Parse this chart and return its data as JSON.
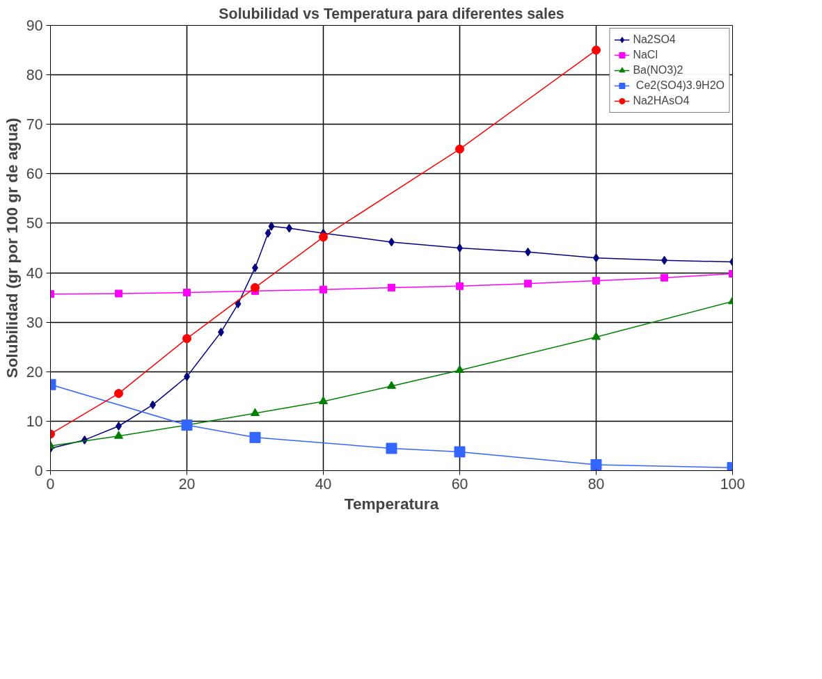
{
  "chart_data": {
    "type": "line",
    "title": "Solubilidad vs Temperatura para diferentes sales",
    "xlabel": "Temperatura",
    "ylabel": "Solubilidad (gr por 100 gr de agua)",
    "xlim": [
      0,
      100
    ],
    "xticks": [
      0,
      20,
      40,
      60,
      80,
      100
    ],
    "ylim": [
      0,
      90
    ],
    "yticks": [
      0,
      10,
      20,
      30,
      40,
      50,
      60,
      70,
      80,
      90
    ],
    "grid": true,
    "legend": "top right",
    "series": [
      {
        "name": "Na2SO4",
        "color": "#000080",
        "marker": "diamond",
        "x": [
          0,
          5,
          10,
          15,
          20,
          25,
          27.5,
          30,
          31.9,
          32.4,
          35,
          40,
          50,
          60,
          70,
          80,
          90,
          100
        ],
        "values": [
          4.5,
          6.2,
          9,
          13.3,
          19,
          28,
          33.7,
          41,
          48,
          49.4,
          49,
          48,
          46.2,
          45,
          44.2,
          43,
          42.5,
          42.2
        ]
      },
      {
        "name": "NaCl",
        "color": "#ff00ff",
        "marker": "square",
        "x": [
          0,
          10,
          20,
          30,
          40,
          50,
          60,
          70,
          80,
          90,
          100
        ],
        "values": [
          35.7,
          35.8,
          36,
          36.3,
          36.6,
          37,
          37.3,
          37.8,
          38.4,
          39,
          39.8
        ]
      },
      {
        "name": "Ba(NO3)2",
        "color": "#008000",
        "marker": "triangle",
        "x": [
          0,
          10,
          20,
          30,
          40,
          50,
          60,
          80,
          100
        ],
        "values": [
          5,
          7,
          9.2,
          11.6,
          14,
          17.1,
          20.3,
          27,
          34.2
        ]
      },
      {
        "name": " Ce2(SO4)3.9H2O",
        "color": "#3366ff",
        "marker": "square",
        "x": [
          0,
          20,
          30,
          50,
          60,
          80,
          100
        ],
        "values": [
          17.4,
          9.2,
          6.7,
          4.5,
          3.8,
          1.2,
          0.6
        ]
      },
      {
        "name": "Na2HAsO4",
        "color": "#ff0000",
        "marker": "circle",
        "x": [
          0,
          10,
          20,
          30,
          40,
          60,
          80
        ],
        "values": [
          7.4,
          15.6,
          26.7,
          37,
          47.2,
          65,
          85
        ]
      }
    ]
  }
}
